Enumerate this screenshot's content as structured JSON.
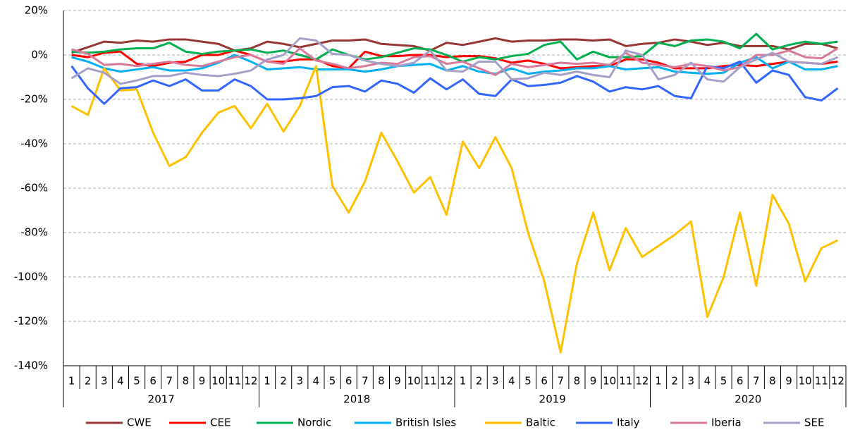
{
  "chart_data": {
    "type": "line",
    "categories": [
      "1",
      "2",
      "3",
      "4",
      "5",
      "6",
      "7",
      "8",
      "9",
      "10",
      "11",
      "12",
      "1",
      "2",
      "3",
      "4",
      "5",
      "6",
      "7",
      "8",
      "9",
      "10",
      "11",
      "12",
      "1",
      "2",
      "3",
      "4",
      "5",
      "6",
      "7",
      "8",
      "9",
      "10",
      "11",
      "12",
      "1",
      "2",
      "3",
      "4",
      "5",
      "6",
      "7",
      "8",
      "9",
      "10",
      "11",
      "12"
    ],
    "years": [
      "2017",
      "2018",
      "2019",
      "2020"
    ],
    "ylim": [
      -140,
      20
    ],
    "yticks": [
      {
        "value": -140,
        "label": "-140%"
      },
      {
        "value": -120,
        "label": "-120%"
      },
      {
        "value": -100,
        "label": "-100%"
      },
      {
        "value": -80,
        "label": "-80%"
      },
      {
        "value": -60,
        "label": "-60%"
      },
      {
        "value": -40,
        "label": "-40%"
      },
      {
        "value": -20,
        "label": "-20%"
      },
      {
        "value": 0,
        "label": "0%"
      },
      {
        "value": 20,
        "label": "20%"
      }
    ],
    "grid": true,
    "legend": "bottom",
    "series": [
      {
        "name": "CWE",
        "color": "#953735",
        "values": [
          1,
          3.5,
          6,
          5.5,
          6.5,
          6,
          7,
          7,
          6,
          5,
          2,
          3,
          6,
          5,
          3.5,
          5,
          6.5,
          6.5,
          7,
          5,
          4.5,
          4,
          2,
          5.5,
          4.5,
          6,
          7.5,
          6,
          6.5,
          6.5,
          7,
          7,
          6.5,
          7,
          4,
          5,
          5.5,
          7,
          6,
          4.5,
          5.5,
          4,
          4,
          4,
          2.5,
          5,
          5,
          3
        ]
      },
      {
        "name": "CEE",
        "color": "#ff0000",
        "values": [
          0,
          -1,
          1,
          1.5,
          -4,
          -5,
          -3.5,
          -3,
          0,
          0,
          2,
          0,
          -3,
          -3,
          -2,
          -2,
          -5,
          -6,
          1.5,
          -0.5,
          -0.5,
          0,
          0,
          -1,
          -0.5,
          -0.5,
          -1.5,
          -3.5,
          -2.5,
          -4,
          -6,
          -5.5,
          -5,
          -5,
          -2,
          -2,
          -3.5,
          -6,
          -6,
          -6,
          -5,
          -4.5,
          -5,
          -4,
          -3,
          -3.5,
          -4,
          -3
        ]
      },
      {
        "name": "Nordic",
        "color": "#00b050",
        "values": [
          1.5,
          1,
          1.5,
          2.5,
          3,
          3,
          5.5,
          1.5,
          0.5,
          1.5,
          2,
          2.5,
          1,
          2,
          0,
          -2,
          2.5,
          0,
          -2,
          -1,
          1,
          3,
          2.5,
          0,
          -3,
          -1,
          -2,
          -0.5,
          0.5,
          4.5,
          6,
          -2,
          1.5,
          -1,
          -1,
          -0.5,
          5.5,
          4,
          6.5,
          7,
          6,
          3,
          9.5,
          2.5,
          4.5,
          6,
          5,
          6
        ]
      },
      {
        "name": "British Isles",
        "color": "#00b0f0",
        "values": [
          -1,
          -3,
          -6,
          -7.5,
          -6.5,
          -5.5,
          -7,
          -7,
          -6,
          -3.5,
          0,
          -3,
          -6.5,
          -6,
          -5.5,
          -6.5,
          -6.5,
          -6.5,
          -7.5,
          -6.5,
          -5,
          -4.5,
          -4,
          -7,
          -5,
          -7.5,
          -8.5,
          -6,
          -8.5,
          -7.5,
          -7,
          -6,
          -6,
          -5,
          -6.5,
          -6,
          -5.5,
          -7.5,
          -8,
          -8.5,
          -8,
          -3.5,
          -1,
          -6,
          -3,
          -6.5,
          -6.5,
          -5
        ]
      },
      {
        "name": "Baltic",
        "color": "#ffc000",
        "values": [
          -23,
          -27,
          -6,
          -16,
          -15.5,
          -35,
          -50,
          -46,
          -35,
          -26,
          -23,
          -33,
          -22,
          -34.5,
          -23,
          -5,
          -59,
          -71,
          -57,
          -35,
          -48,
          -62,
          -55,
          -72,
          -39,
          -51,
          -37,
          -51,
          -80,
          -102,
          -134,
          -94,
          -71,
          -97,
          -78,
          -91,
          -86,
          -81,
          -75,
          -118,
          -100,
          -71,
          -104,
          -63,
          -76,
          -102,
          -87,
          -83.5
        ]
      },
      {
        "name": "Italy",
        "color": "#3366ff",
        "values": [
          -5,
          -15,
          -22,
          -15,
          -14.5,
          -11.5,
          -14,
          -11,
          -16,
          -16,
          -11,
          -14,
          -20,
          -20,
          -19.5,
          -18.5,
          -14.5,
          -14,
          -16.5,
          -11.5,
          -13,
          -17,
          -10.5,
          -15.5,
          -11,
          -17.5,
          -18.5,
          -11,
          -14,
          -13.5,
          -12.5,
          -9.5,
          -12,
          -16.5,
          -14.5,
          -15.5,
          -14,
          -18.5,
          -19.5,
          -5,
          -6,
          -3,
          -12.5,
          -7,
          -9,
          -19,
          -20.5,
          -15
        ]
      },
      {
        "name": "Iberia",
        "color": "#d87a9a",
        "values": [
          2.5,
          0.5,
          -4.5,
          -4,
          -5,
          -4,
          -3,
          -4.5,
          -5,
          -3,
          -1,
          0,
          -3,
          -4,
          3,
          -2.5,
          -4,
          -6,
          -5,
          -3.5,
          -4,
          -1,
          -0.5,
          -4,
          -3,
          -6,
          -9,
          -4,
          -5.5,
          -4.5,
          -3.5,
          -4,
          -3.5,
          -4.5,
          1,
          -3.5,
          -4.5,
          -5.5,
          -4,
          -5,
          -7,
          -5.5,
          0,
          0,
          2,
          -1,
          -1.5,
          3
        ]
      },
      {
        "name": "SEE",
        "color": "#a6a0c8",
        "values": [
          -10.5,
          -6,
          -8,
          -13,
          -11.5,
          -9.5,
          -9.5,
          -8,
          -9,
          -9.5,
          -8.5,
          -7,
          -2,
          0,
          7.5,
          6.5,
          0.5,
          0,
          -2.5,
          -4,
          -5,
          -3.5,
          2,
          -7,
          -7.5,
          -3,
          -3,
          -11,
          -10.5,
          -8,
          -9,
          -7.5,
          -9,
          -10,
          2,
          0,
          -11,
          -9,
          -3.5,
          -11,
          -12,
          -5.5,
          -2,
          1,
          -3,
          -3.5,
          -4,
          -1
        ]
      }
    ]
  }
}
